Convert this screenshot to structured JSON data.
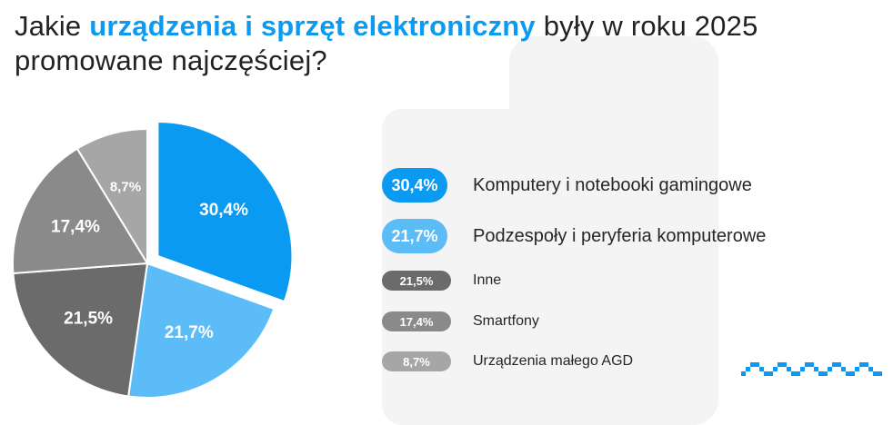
{
  "title": {
    "part1": "Jakie ",
    "highlight": "urządzenia i sprzęt elektroniczny",
    "part2": " były w roku 2025 promowane najczęściej?"
  },
  "colors": {
    "accent": "#0b9af2",
    "light_blue": "#5cbcf8",
    "dark_gray": "#6b6b6b",
    "mid_gray": "#8a8a8a",
    "light_gray": "#a6a6a6"
  },
  "chart_data": {
    "type": "pie",
    "categories": [
      "Komputery i notebooki gamingowe",
      "Podzespoły i peryferia komputerowe",
      "Inne",
      "Smartfony",
      "Urządzenia małego AGD"
    ],
    "values": [
      30.4,
      21.7,
      21.5,
      17.4,
      8.7
    ],
    "labels": [
      "30,4%",
      "21,7%",
      "21,5%",
      "17,4%",
      "8,7%"
    ],
    "colors": [
      "#0b9af2",
      "#5cbcf8",
      "#6b6b6b",
      "#8a8a8a",
      "#a6a6a6"
    ],
    "exploded": [
      true,
      false,
      false,
      false,
      false
    ]
  },
  "legend": [
    {
      "value": "30,4%",
      "label": "Komputery i notebooki gamingowe",
      "size": "big"
    },
    {
      "value": "21,7%",
      "label": "Podzespoły i peryferia komputerowe",
      "size": "big"
    },
    {
      "value": "21,5%",
      "label": "Inne",
      "size": "small"
    },
    {
      "value": "17,4%",
      "label": "Smartfony",
      "size": "small"
    },
    {
      "value": "8,7%",
      "label": "Urządzenia małego AGD",
      "size": "small"
    }
  ]
}
